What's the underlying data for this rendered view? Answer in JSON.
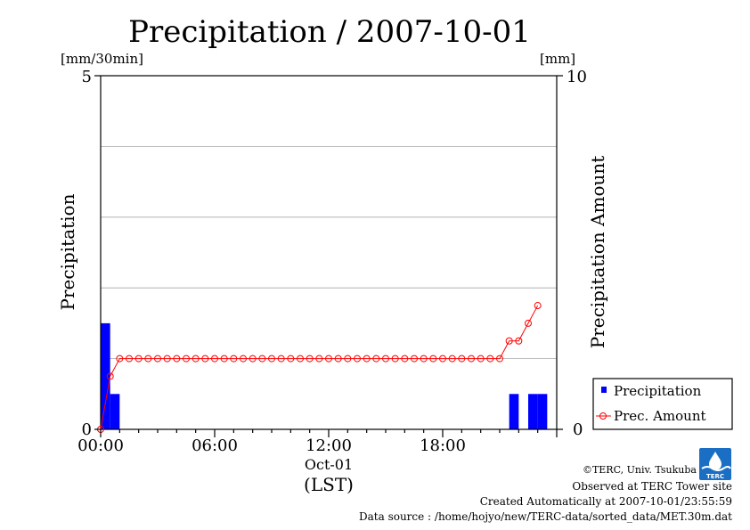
{
  "chart_data": {
    "type": "bar+line",
    "title": "Precipitation / 2007-10-01",
    "left_unit": "[mm/30min]",
    "right_unit": "[mm]",
    "ylabel_left": "Precipitation",
    "ylabel_right": "Precipitation Amount",
    "ylim_left": [
      0,
      5
    ],
    "ylim_right": [
      0,
      10
    ],
    "y_ticks_left": [
      "0",
      "5"
    ],
    "y_ticks_right": [
      "0",
      "10"
    ],
    "grid_y": [
      1,
      2,
      3,
      4
    ],
    "x_range_hours": [
      0,
      24
    ],
    "x_ticks": [
      {
        "hour": 0,
        "label": "00:00"
      },
      {
        "hour": 6,
        "label": "06:00"
      },
      {
        "hour": 12,
        "label": "12:00"
      },
      {
        "hour": 18,
        "label": "18:00"
      }
    ],
    "x_date_label": "Oct-01",
    "x_timezone_label": "(LST)",
    "series": [
      {
        "name": "Precipitation",
        "kind": "bar",
        "color": "#0000ff",
        "axis": "left",
        "unit": "mm/30min",
        "half_hour_values": [
          1.5,
          0.5,
          0,
          0,
          0,
          0,
          0,
          0,
          0,
          0,
          0,
          0,
          0,
          0,
          0,
          0,
          0,
          0,
          0,
          0,
          0,
          0,
          0,
          0,
          0,
          0,
          0,
          0,
          0,
          0,
          0,
          0,
          0,
          0,
          0,
          0,
          0,
          0,
          0,
          0,
          0,
          0,
          0,
          0.5,
          0,
          0.5,
          0.5,
          0
        ]
      },
      {
        "name": "Prec. Amount",
        "kind": "line",
        "color": "#ff0000",
        "axis": "right",
        "unit": "mm",
        "points_hours": [
          0,
          0.5,
          1,
          1.5,
          2,
          2.5,
          3,
          3.5,
          4,
          4.5,
          5,
          5.5,
          6,
          6.5,
          7,
          7.5,
          8,
          8.5,
          9,
          9.5,
          10,
          10.5,
          11,
          11.5,
          12,
          12.5,
          13,
          13.5,
          14,
          14.5,
          15,
          15.5,
          16,
          16.5,
          17,
          17.5,
          18,
          18.5,
          19,
          19.5,
          20,
          20.5,
          21,
          21.5,
          22,
          22.5,
          23
        ],
        "values": [
          0,
          1.5,
          2,
          2,
          2,
          2,
          2,
          2,
          2,
          2,
          2,
          2,
          2,
          2,
          2,
          2,
          2,
          2,
          2,
          2,
          2,
          2,
          2,
          2,
          2,
          2,
          2,
          2,
          2,
          2,
          2,
          2,
          2,
          2,
          2,
          2,
          2,
          2,
          2,
          2,
          2,
          2,
          2,
          2.5,
          2.5,
          3,
          3.5
        ]
      }
    ],
    "legend_position": "bottom-right"
  },
  "footer": {
    "copyright": "©TERC, Univ. Tsukuba",
    "observed": "Observed at TERC Tower site",
    "created": "Created Automatically at 2007-10-01/23:55:59",
    "source": "Data source : /home/hojyo/new/TERC-data/sorted_data/MET.30m.dat"
  },
  "logo": {
    "text": "TERC",
    "color": "#1a6fc4"
  }
}
